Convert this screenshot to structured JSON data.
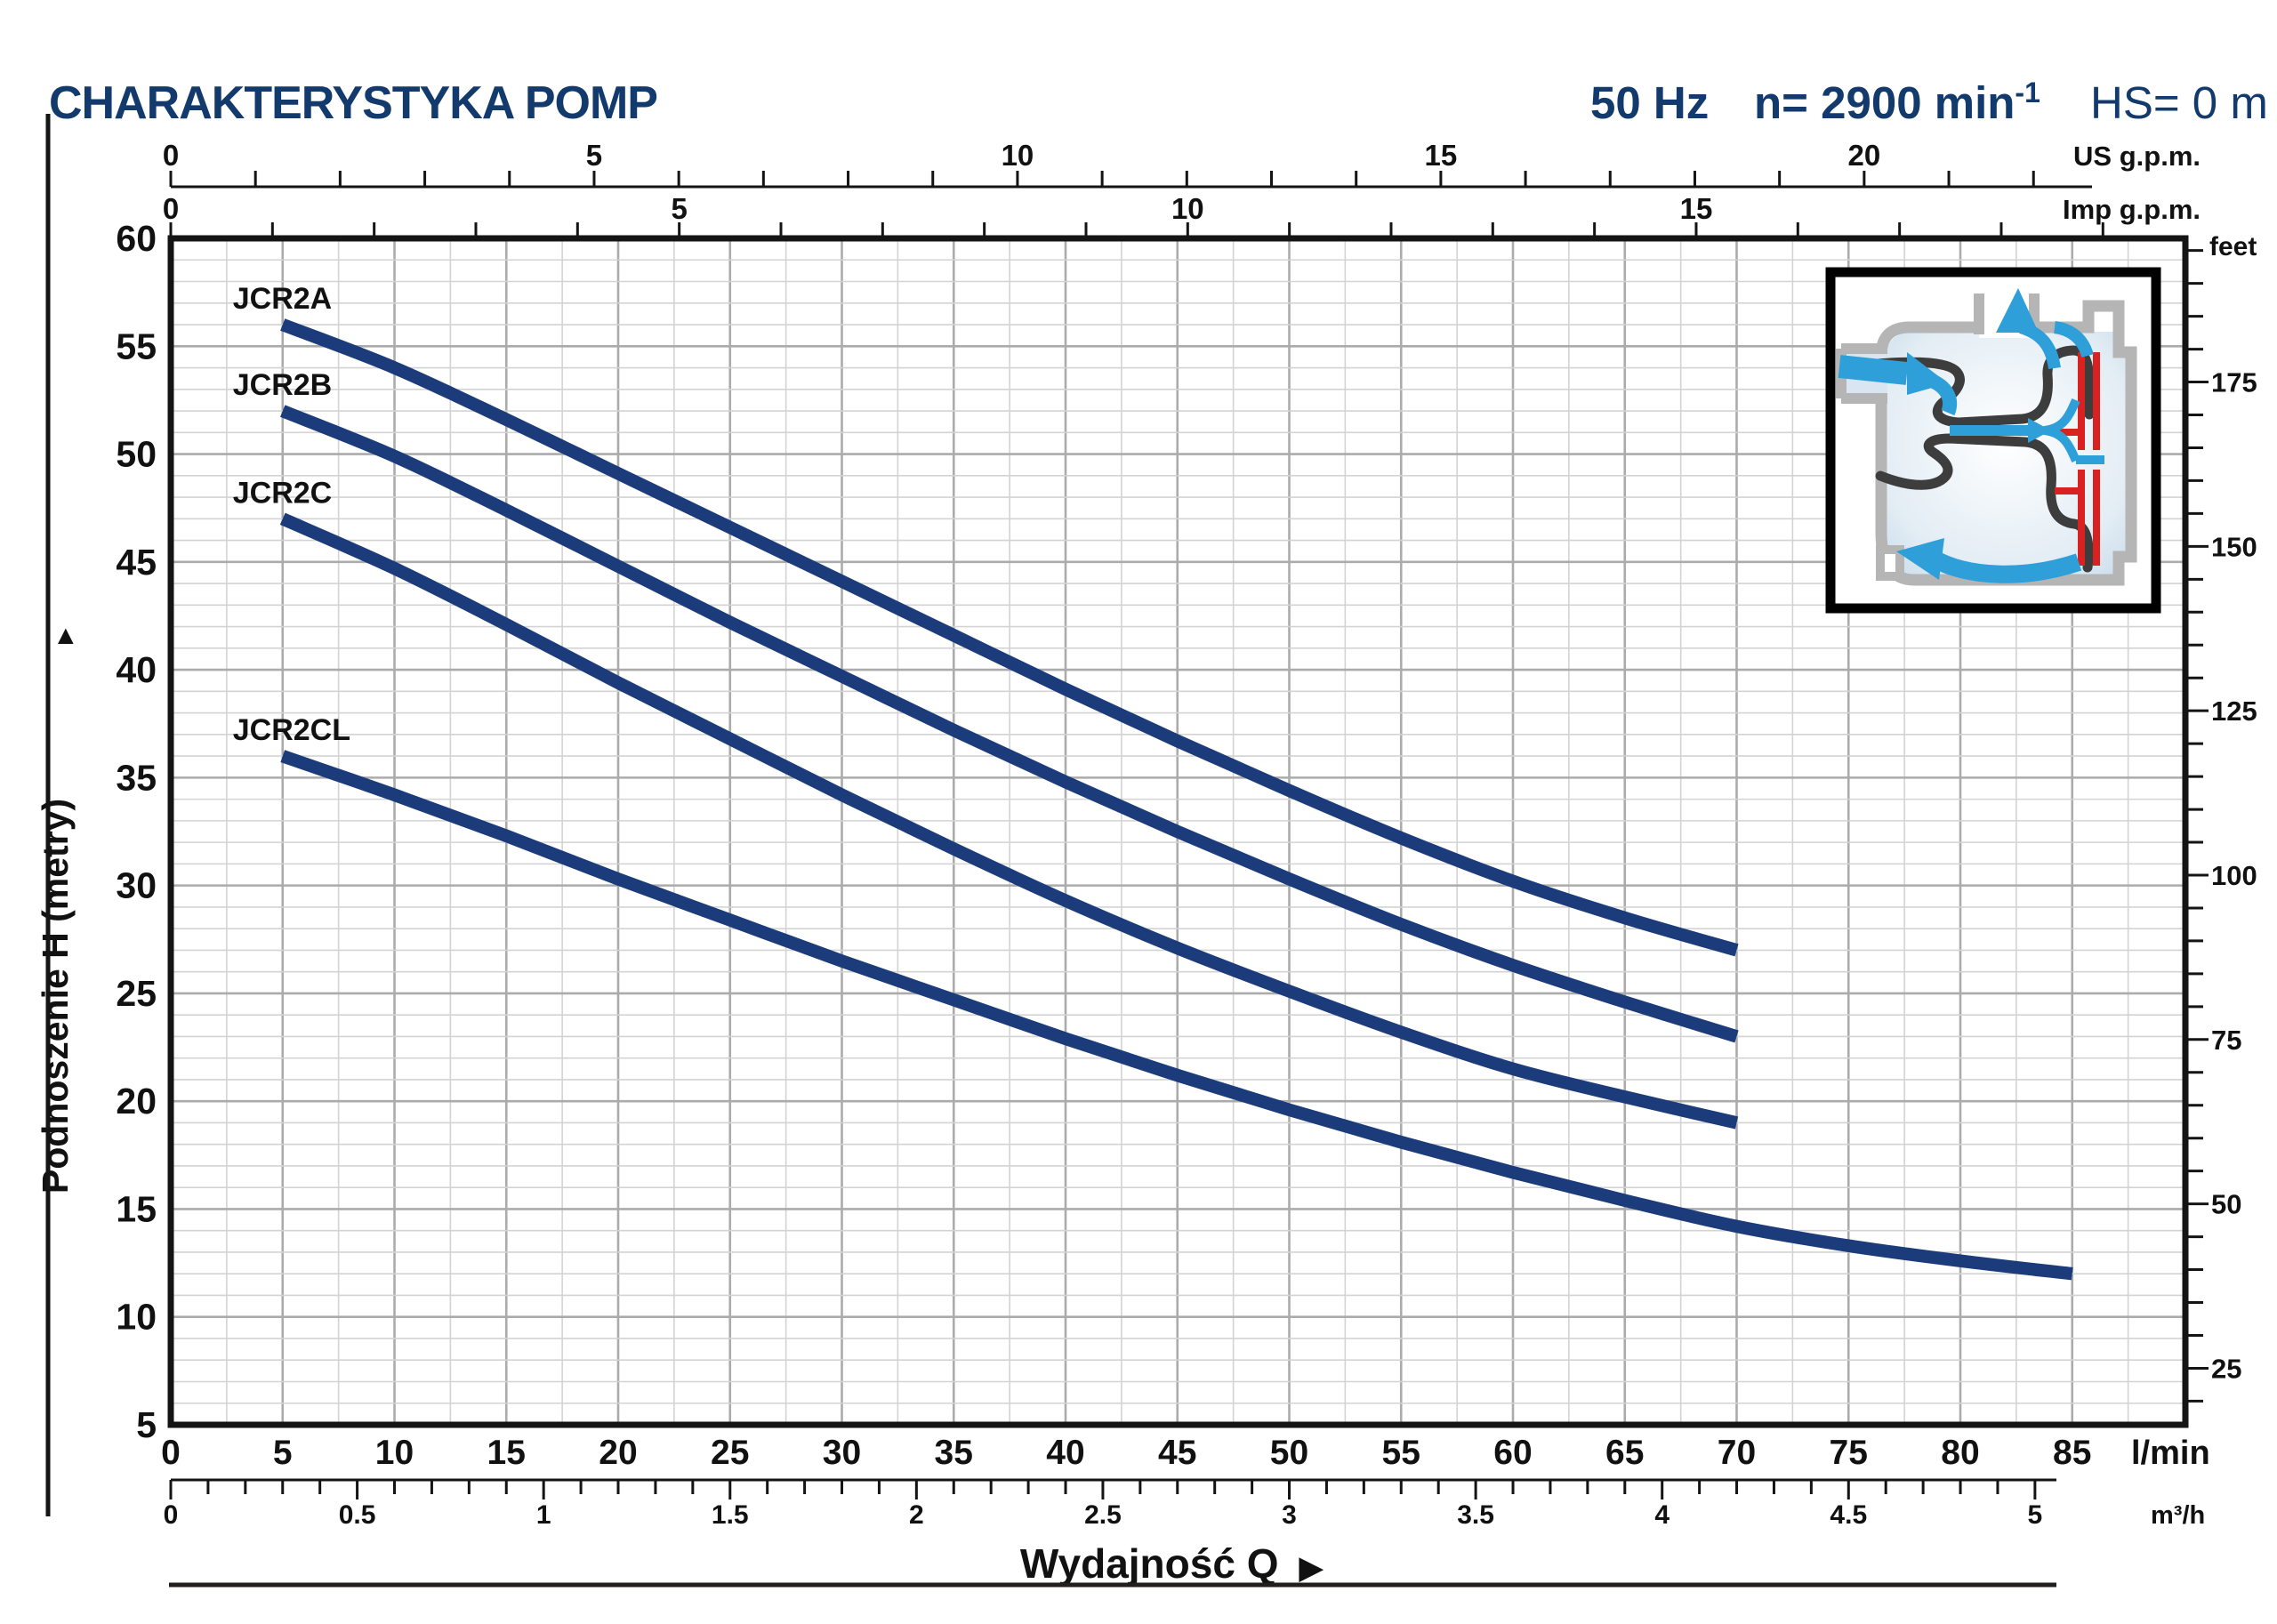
{
  "header": {
    "title": "CHARAKTERYSTYKA POMP",
    "frequency": "50 Hz",
    "speed": "n= 2900 min",
    "speed_exp": "-1",
    "suction": "HS= 0 m"
  },
  "colors": {
    "navy_text": "#123a6d",
    "curve": "#1b3b7a",
    "grid_minor": "#d3d3d3",
    "grid_major": "#ababab",
    "axis_black": "#141414",
    "inset_red": "#d92121",
    "inset_blue": "#2e9fd9",
    "inset_gray": "#b5b5b5"
  },
  "y_axis_left": {
    "title": "Podnoszenie H  (metry)",
    "arrow": "▲"
  },
  "x_axis_title": {
    "text": "Wydajność Q",
    "arrow": "▶"
  },
  "chart_data": {
    "type": "line",
    "title": "CHARAKTERYSTYKA POMP",
    "conditions": [
      "50 Hz",
      "n= 2900 min-1",
      "HS= 0 m"
    ],
    "x_label": "Wydajność Q",
    "y_label": "Podnoszenie H (metry)",
    "xlim_lmin": [
      0,
      90
    ],
    "ylim_m": [
      5,
      60
    ],
    "grid": {
      "x_minor_lmin": 2.5,
      "x_major_lmin": 5,
      "y_minor_m": 1,
      "y_major_m": 5
    },
    "x_axes": [
      {
        "unit": "US g.p.m.",
        "labels": [
          "0",
          "5",
          "10",
          "15",
          "20"
        ],
        "lmin_per_unit": 3.785,
        "minor_step": 1,
        "max_tick": 22
      },
      {
        "unit": "Imp g.p.m.",
        "labels": [
          "0",
          "5",
          "10",
          "15"
        ],
        "lmin_per_unit": 4.546,
        "minor_step": 1,
        "max_tick": 19
      },
      {
        "unit": "l/min",
        "labels": [
          "0",
          "5",
          "10",
          "15",
          "20",
          "25",
          "30",
          "35",
          "40",
          "45",
          "50",
          "55",
          "60",
          "65",
          "70",
          "75",
          "80",
          "85"
        ],
        "lmin_per_unit": 1
      },
      {
        "unit": "m³/h",
        "labels": [
          "0",
          "0.5",
          "1",
          "1.5",
          "2",
          "2.5",
          "3",
          "3.5",
          "4",
          "4.5",
          "5"
        ],
        "lmin_per_unit": 16.667,
        "minor_step": 0.1
      }
    ],
    "y_axes": [
      {
        "unit": "metry",
        "labels": [
          "60",
          "55",
          "50",
          "45",
          "40",
          "35",
          "30",
          "25",
          "20",
          "15",
          "10",
          "5"
        ]
      },
      {
        "unit": "feet",
        "labels": [
          "175",
          "150",
          "125",
          "100",
          "75",
          "50",
          "25"
        ],
        "minor_step_ft": 5
      }
    ],
    "series": [
      {
        "name": "JCR2A",
        "points": [
          [
            5,
            56
          ],
          [
            10,
            54
          ],
          [
            15,
            51.6
          ],
          [
            20,
            49.1
          ],
          [
            25,
            46.6
          ],
          [
            30,
            44.1
          ],
          [
            35,
            41.6
          ],
          [
            40,
            39.1
          ],
          [
            45,
            36.7
          ],
          [
            50,
            34.4
          ],
          [
            55,
            32.2
          ],
          [
            60,
            30.2
          ],
          [
            65,
            28.5
          ],
          [
            70,
            27
          ]
        ]
      },
      {
        "name": "JCR2B",
        "points": [
          [
            5,
            52
          ],
          [
            10,
            49.9
          ],
          [
            15,
            47.4
          ],
          [
            20,
            44.8
          ],
          [
            25,
            42.2
          ],
          [
            30,
            39.7
          ],
          [
            35,
            37.2
          ],
          [
            40,
            34.8
          ],
          [
            45,
            32.5
          ],
          [
            50,
            30.3
          ],
          [
            55,
            28.2
          ],
          [
            60,
            26.3
          ],
          [
            65,
            24.6
          ],
          [
            70,
            23
          ]
        ]
      },
      {
        "name": "JCR2C",
        "points": [
          [
            5,
            47
          ],
          [
            10,
            44.7
          ],
          [
            15,
            42.1
          ],
          [
            20,
            39.4
          ],
          [
            25,
            36.8
          ],
          [
            30,
            34.2
          ],
          [
            35,
            31.7
          ],
          [
            40,
            29.3
          ],
          [
            45,
            27.1
          ],
          [
            50,
            25.1
          ],
          [
            55,
            23.2
          ],
          [
            60,
            21.5
          ],
          [
            65,
            20.2
          ],
          [
            70,
            19
          ]
        ]
      },
      {
        "name": "JCR2CL",
        "points": [
          [
            5,
            36
          ],
          [
            10,
            34.2
          ],
          [
            15,
            32.3
          ],
          [
            20,
            30.3
          ],
          [
            25,
            28.4
          ],
          [
            30,
            26.5
          ],
          [
            35,
            24.7
          ],
          [
            40,
            22.9
          ],
          [
            45,
            21.2
          ],
          [
            50,
            19.6
          ],
          [
            55,
            18.1
          ],
          [
            60,
            16.7
          ],
          [
            65,
            15.4
          ],
          [
            70,
            14.2
          ],
          [
            75,
            13.3
          ],
          [
            80,
            12.6
          ],
          [
            85,
            12
          ]
        ]
      }
    ]
  }
}
